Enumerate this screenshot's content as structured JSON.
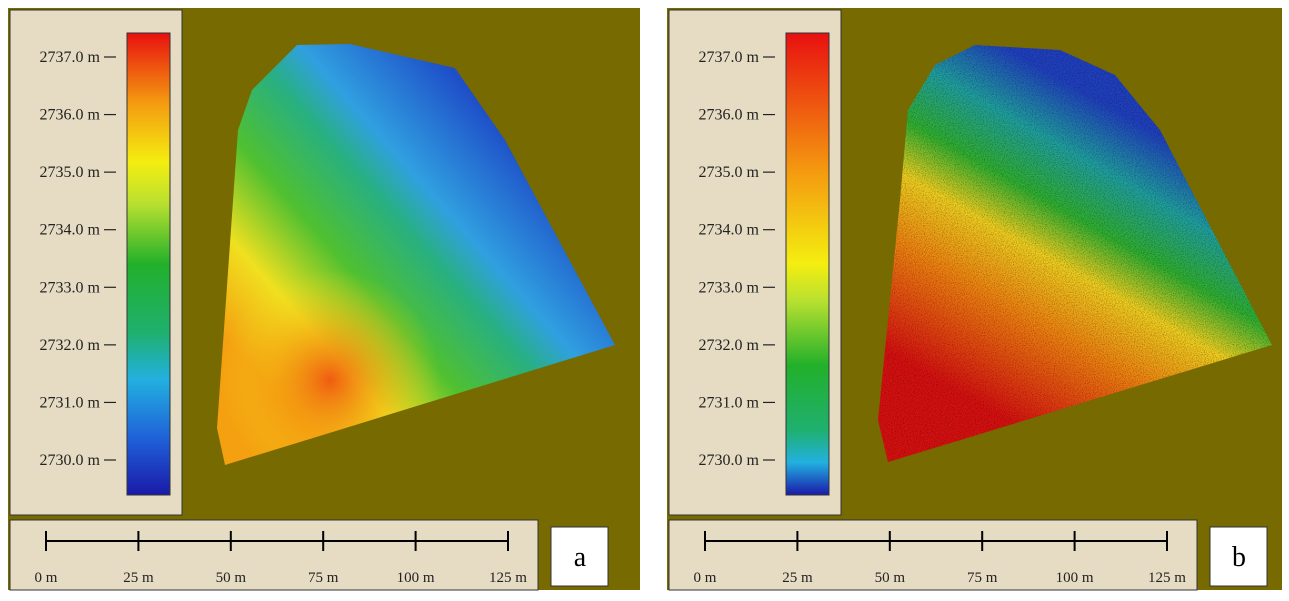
{
  "panels": [
    {
      "legend": [
        "2737.0 m",
        "2736.0 m",
        "2735.0 m",
        "2734.0 m",
        "2733.0 m",
        "2732.0 m",
        "2731.0 m",
        "2730.0 m"
      ],
      "scale": [
        "0 m",
        "25 m",
        "50 m",
        "75 m",
        "100 m",
        "125 m"
      ],
      "label": "a"
    },
    {
      "legend": [
        "2737.0 m",
        "2736.0 m",
        "2735.0 m",
        "2734.0 m",
        "2733.0 m",
        "2732.0 m",
        "2731.0 m",
        "2730.0 m"
      ],
      "scale": [
        "0 m",
        "25 m",
        "50 m",
        "75 m",
        "100 m",
        "125 m"
      ],
      "label": "b"
    }
  ]
}
